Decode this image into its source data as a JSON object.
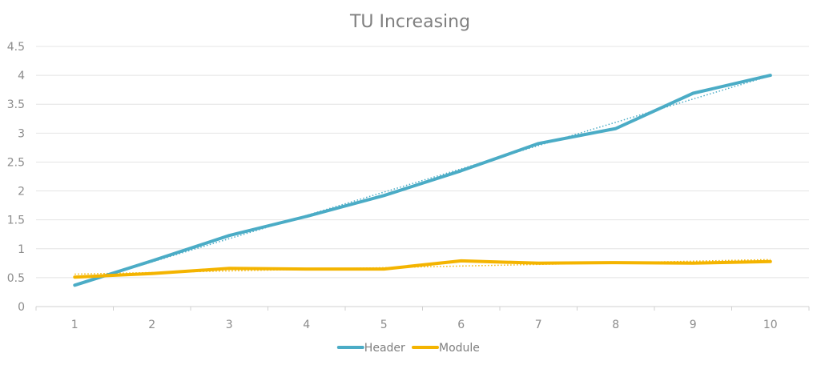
{
  "chart_data": {
    "type": "line",
    "title": "TU Increasing",
    "xlabel": "",
    "ylabel": "",
    "x": [
      1,
      2,
      3,
      4,
      5,
      6,
      7,
      8,
      9,
      10
    ],
    "x_tick_labels": [
      "1",
      "2",
      "3",
      "4",
      "5",
      "6",
      "7",
      "8",
      "9",
      "10"
    ],
    "ylim": [
      0,
      4.5
    ],
    "y_ticks": [
      0,
      0.5,
      1,
      1.5,
      2,
      2.5,
      3,
      3.5,
      4,
      4.5
    ],
    "y_tick_labels": [
      "0",
      "0.5",
      "1",
      "1.5",
      "2",
      "2.5",
      "3",
      "3.5",
      "4",
      "4.5"
    ],
    "grid": "horizontal",
    "legend_position": "bottom",
    "trendline": "linear, dotted",
    "series": [
      {
        "name": "Header",
        "color": "#4bacc6",
        "values": [
          0.37,
          0.79,
          1.23,
          1.56,
          1.92,
          2.35,
          2.82,
          3.08,
          3.69,
          4.0
        ]
      },
      {
        "name": "Module",
        "color": "#f4b400",
        "values": [
          0.51,
          0.57,
          0.66,
          0.65,
          0.65,
          0.79,
          0.75,
          0.76,
          0.75,
          0.78
        ]
      }
    ]
  }
}
